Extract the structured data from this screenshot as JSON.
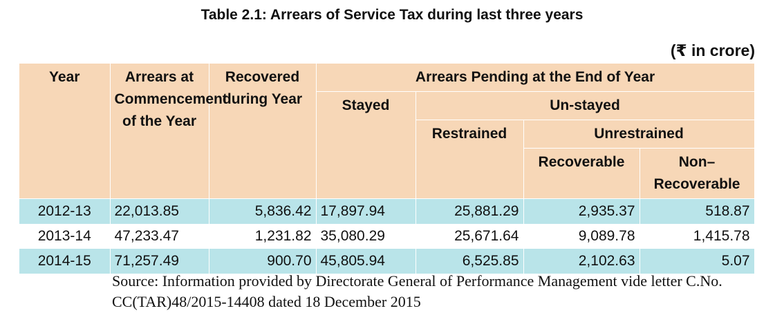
{
  "title": "Table 2.1: Arrears of Service Tax during last three years",
  "unit": "(₹ in crore)",
  "headers": {
    "year": "Year",
    "arrears_commencement": "Arrears at Commencement of the Year",
    "recovered": "Recovered during Year",
    "pending": "Arrears Pending at the End of Year",
    "stayed": "Stayed",
    "unstayed": "Un-stayed",
    "restrained": "Restrained",
    "unrestrained": "Unrestrained",
    "recoverable": "Recoverable",
    "non_recoverable": "Non–Recoverable"
  },
  "rows": [
    {
      "year": "2012-13",
      "arrears": "22,013.85",
      "recovered": "5,836.42",
      "stayed": "17,897.94",
      "restrained": "25,881.29",
      "recoverable": "2,935.37",
      "non_recoverable": "518.87"
    },
    {
      "year": "2013-14",
      "arrears": "47,233.47",
      "recovered": "1,231.82",
      "stayed": "35,080.29",
      "restrained": "25,671.64",
      "recoverable": "9,089.78",
      "non_recoverable": "1,415.78"
    },
    {
      "year": "2014-15",
      "arrears": "71,257.49",
      "recovered": "900.70",
      "stayed": "45,805.94",
      "restrained": "6,525.85",
      "recoverable": "2,102.63",
      "non_recoverable": "5.07"
    }
  ],
  "source": "Source: Information provided by Directorate General of Performance Management vide letter C.No. CC(TAR)48/2015-14408 dated 18 December 2015"
}
